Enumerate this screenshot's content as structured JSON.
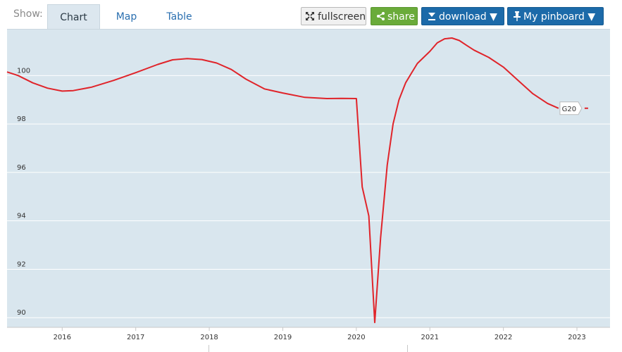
{
  "toolbar": {
    "show_label": "Show:",
    "tabs": [
      {
        "label": "Chart",
        "active": true
      },
      {
        "label": "Map",
        "active": false
      },
      {
        "label": "Table",
        "active": false
      }
    ],
    "fullscreen_label": "fullscreen",
    "share_label": "share",
    "download_label": "download ▼",
    "pinboard_label": "My pinboard ▼",
    "icons": {
      "fullscreen": "expand-arrows-icon",
      "share": "share-icon",
      "download": "download-icon",
      "pinboard": "pin-icon"
    }
  },
  "colors": {
    "plot_background": "#d9e6ee",
    "series_line": "#e0242a",
    "grid": "#ffffff",
    "share_button": "#6aab3a",
    "primary_button": "#1c6aa9"
  },
  "chart_data": {
    "type": "line",
    "title": "",
    "xlabel": "",
    "ylabel": "",
    "xlim": [
      2015.25,
      2023.45
    ],
    "ylim": [
      89.6,
      101.9
    ],
    "yticks": [
      90,
      92,
      94,
      96,
      98,
      100
    ],
    "ytick_labels": [
      "90",
      "92",
      "94",
      "96",
      "98",
      "100"
    ],
    "xticks": [
      2016,
      2017,
      2018,
      2019,
      2020,
      2021,
      2022,
      2023
    ],
    "xtick_labels": [
      "2016",
      "2017",
      "2018",
      "2019",
      "2020",
      "2021",
      "2022",
      "2023"
    ],
    "grid": true,
    "legend": "none",
    "series": [
      {
        "name": "G20",
        "end_label": "G20",
        "x": [
          2015.25,
          2015.4,
          2015.6,
          2015.8,
          2016.0,
          2016.15,
          2016.4,
          2016.7,
          2017.0,
          2017.3,
          2017.5,
          2017.7,
          2017.9,
          2018.1,
          2018.3,
          2018.5,
          2018.75,
          2019.0,
          2019.3,
          2019.6,
          2019.8,
          2020.0,
          2020.08,
          2020.17,
          2020.25,
          2020.33,
          2020.42,
          2020.5,
          2020.58,
          2020.67,
          2020.75,
          2020.83,
          2021.0,
          2021.1,
          2021.2,
          2021.3,
          2021.4,
          2021.5,
          2021.6,
          2021.8,
          2022.0,
          2022.2,
          2022.4,
          2022.6,
          2022.75
        ],
        "values": [
          100.15,
          100.0,
          99.7,
          99.48,
          99.36,
          99.38,
          99.52,
          99.8,
          100.12,
          100.46,
          100.65,
          100.7,
          100.66,
          100.52,
          100.25,
          99.85,
          99.45,
          99.28,
          99.1,
          99.05,
          99.06,
          99.05,
          95.4,
          94.2,
          89.8,
          93.3,
          96.3,
          98.0,
          99.0,
          99.7,
          100.1,
          100.5,
          101.0,
          101.35,
          101.52,
          101.55,
          101.45,
          101.25,
          101.05,
          100.75,
          100.35,
          99.8,
          99.25,
          98.85,
          98.65
        ]
      }
    ]
  }
}
